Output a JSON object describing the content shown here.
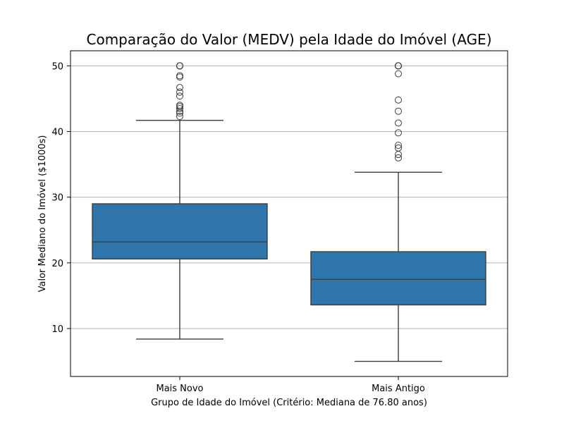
{
  "chart_data": {
    "type": "box",
    "title": "Comparação do Valor (MEDV) pela Idade do Imóvel (AGE)",
    "xlabel": "Grupo de Idade do Imóvel (Critério: Mediana de 76.80 anos)",
    "ylabel": "Valor Mediano do Imóvel ($1000s)",
    "ylim": [
      2.7,
      52.3
    ],
    "yticks": [
      10,
      20,
      30,
      40,
      50
    ],
    "grid": "horizontal",
    "colors": {
      "box_fill": "#2f76ad",
      "line": "#3d3d3d",
      "grid": "#b0b0b0",
      "axis": "#000000"
    },
    "categories": [
      "Mais Novo",
      "Mais Antigo"
    ],
    "groups": [
      {
        "name": "Mais Novo",
        "whisker_low": 8.4,
        "q1": 20.6,
        "median": 23.2,
        "q3": 29.0,
        "whisker_high": 41.7,
        "outliers": [
          42.3,
          42.8,
          43.1,
          43.5,
          43.8,
          44.0,
          45.4,
          46.0,
          46.7,
          48.3,
          48.5,
          50.0,
          50.0,
          50.0,
          50.0
        ]
      },
      {
        "name": "Mais Antigo",
        "whisker_low": 5.0,
        "q1": 13.6,
        "median": 17.5,
        "q3": 21.7,
        "whisker_high": 33.8,
        "outliers": [
          36.0,
          36.5,
          37.5,
          37.9,
          39.8,
          41.3,
          43.1,
          44.8,
          48.8,
          50.0,
          50.0,
          50.0,
          50.0
        ]
      }
    ]
  }
}
